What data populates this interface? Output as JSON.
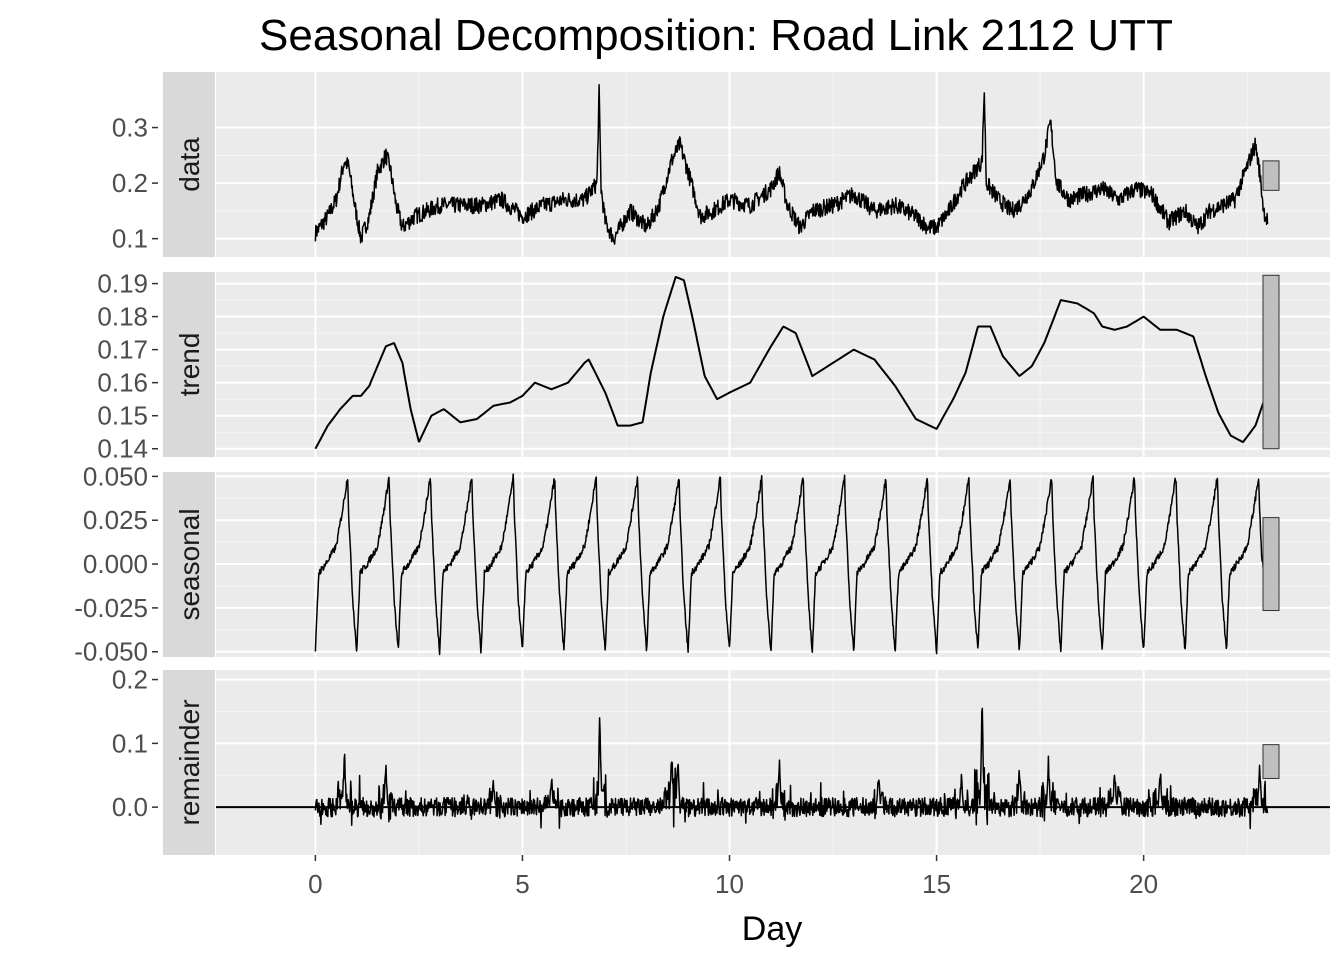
{
  "chart_data": {
    "type": "line",
    "title": "Seasonal Decomposition: Road Link 2112 UTT",
    "xlabel": "Day",
    "xlim": [
      -2.4,
      24.5
    ],
    "x_ticks": [
      0,
      5,
      10,
      15,
      20
    ],
    "x_tick_labels": [
      "0",
      "5",
      "10",
      "15",
      "20"
    ],
    "grid": true,
    "panel_background": "#ebebeb",
    "strip_background": "#d9d9d9",
    "line_color": "#000000",
    "scale_bar_fill": "#bfbfbf",
    "panels": [
      {
        "name": "data",
        "ylim": [
          0.067,
          0.4
        ],
        "y_ticks": [
          0.1,
          0.2,
          0.3
        ],
        "y_tick_labels": [
          "0.1",
          "0.2",
          "0.3"
        ],
        "scale_bar": [
          0.187,
          0.24
        ],
        "x": [
          0,
          0.3,
          0.5,
          0.7,
          0.8,
          0.95,
          1.1,
          1.3,
          1.5,
          1.7,
          1.8,
          1.95,
          2.1,
          2.4,
          2.7,
          3.0,
          3.5,
          4.0,
          4.5,
          5.0,
          5.5,
          6.0,
          6.5,
          6.8,
          6.85,
          6.9,
          7.0,
          7.2,
          7.6,
          8.0,
          8.3,
          8.6,
          8.8,
          9.0,
          9.3,
          9.6,
          10,
          10.5,
          11,
          11.2,
          11.4,
          11.7,
          12,
          12.5,
          13,
          13.5,
          14,
          14.5,
          14.8,
          15.0,
          15.3,
          15.6,
          15.9,
          16.1,
          16.15,
          16.2,
          16.5,
          16.8,
          17.0,
          17.3,
          17.6,
          17.75,
          17.9,
          18.2,
          18.6,
          19.0,
          19.4,
          19.8,
          20.2,
          20.6,
          21.0,
          21.3,
          21.6,
          21.9,
          22.2,
          22.5,
          22.7,
          22.8,
          22.9,
          23.0
        ],
        "values": [
          0.11,
          0.14,
          0.17,
          0.24,
          0.23,
          0.16,
          0.1,
          0.14,
          0.22,
          0.25,
          0.23,
          0.16,
          0.12,
          0.14,
          0.15,
          0.16,
          0.16,
          0.16,
          0.17,
          0.14,
          0.16,
          0.17,
          0.17,
          0.2,
          0.37,
          0.19,
          0.13,
          0.1,
          0.15,
          0.12,
          0.16,
          0.24,
          0.27,
          0.22,
          0.14,
          0.15,
          0.17,
          0.16,
          0.19,
          0.22,
          0.16,
          0.12,
          0.15,
          0.16,
          0.18,
          0.15,
          0.16,
          0.14,
          0.12,
          0.12,
          0.15,
          0.19,
          0.22,
          0.24,
          0.37,
          0.2,
          0.17,
          0.15,
          0.16,
          0.19,
          0.25,
          0.31,
          0.2,
          0.17,
          0.18,
          0.19,
          0.17,
          0.19,
          0.18,
          0.13,
          0.15,
          0.12,
          0.15,
          0.16,
          0.17,
          0.23,
          0.27,
          0.22,
          0.15,
          0.13
        ],
        "noise": 0.015
      },
      {
        "name": "trend",
        "ylim": [
          0.1375,
          0.1935
        ],
        "y_ticks": [
          0.14,
          0.15,
          0.16,
          0.17,
          0.18,
          0.19
        ],
        "y_tick_labels": [
          "0.14",
          "0.15",
          "0.16",
          "0.17",
          "0.18",
          "0.19"
        ],
        "scale_bar": [
          0.14,
          0.1925
        ],
        "x": [
          0,
          0.3,
          0.6,
          0.9,
          1.1,
          1.3,
          1.5,
          1.7,
          1.9,
          2.1,
          2.3,
          2.5,
          2.8,
          3.1,
          3.5,
          3.9,
          4.3,
          4.7,
          5.0,
          5.3,
          5.7,
          6.1,
          6.5,
          6.6,
          6.8,
          7.0,
          7.3,
          7.6,
          7.9,
          8.1,
          8.4,
          8.7,
          8.9,
          9.1,
          9.4,
          9.7,
          10.0,
          10.5,
          11.0,
          11.3,
          11.6,
          12.0,
          12.5,
          13.0,
          13.5,
          14.0,
          14.5,
          15.0,
          15.4,
          15.7,
          16.0,
          16.3,
          16.6,
          17.0,
          17.3,
          17.6,
          18.0,
          18.4,
          18.8,
          19.0,
          19.3,
          19.6,
          20.0,
          20.4,
          20.8,
          21.2,
          21.5,
          21.8,
          22.1,
          22.4,
          22.7,
          23.0
        ],
        "values": [
          0.14,
          0.147,
          0.152,
          0.156,
          0.156,
          0.159,
          0.165,
          0.171,
          0.172,
          0.166,
          0.152,
          0.142,
          0.15,
          0.152,
          0.148,
          0.149,
          0.153,
          0.154,
          0.156,
          0.16,
          0.158,
          0.16,
          0.166,
          0.167,
          0.162,
          0.157,
          0.147,
          0.147,
          0.148,
          0.163,
          0.18,
          0.192,
          0.191,
          0.18,
          0.162,
          0.155,
          0.157,
          0.16,
          0.171,
          0.177,
          0.175,
          0.162,
          0.166,
          0.17,
          0.167,
          0.159,
          0.149,
          0.146,
          0.155,
          0.163,
          0.177,
          0.177,
          0.168,
          0.162,
          0.165,
          0.172,
          0.185,
          0.184,
          0.181,
          0.177,
          0.176,
          0.177,
          0.18,
          0.176,
          0.176,
          0.174,
          0.162,
          0.151,
          0.144,
          0.142,
          0.147,
          0.158
        ],
        "noise": 0
      },
      {
        "name": "seasonal",
        "ylim": [
          -0.053,
          0.0525
        ],
        "y_ticks": [
          -0.05,
          -0.025,
          0,
          0.025,
          0.05
        ],
        "y_tick_labels": [
          "-0.050",
          "-0.025",
          "0.000",
          "0.025",
          "0.050"
        ],
        "scale_bar": [
          -0.0265,
          0.0265
        ],
        "period": 1,
        "cycle_x": [
          0,
          0.08,
          0.25,
          0.5,
          0.65,
          0.78,
          0.8,
          0.9,
          1.0
        ],
        "cycle_values": [
          -0.05,
          -0.005,
          0.0,
          0.01,
          0.03,
          0.05,
          0.03,
          -0.02,
          -0.05
        ],
        "end_x": 23,
        "end_value": -0.027,
        "noise": 0.004
      },
      {
        "name": "remainder",
        "ylim": [
          -0.075,
          0.215
        ],
        "y_ticks": [
          0,
          0.1,
          0.2
        ],
        "y_tick_labels": [
          "0.0",
          "0.1",
          "0.2"
        ],
        "scale_bar": [
          0.045,
          0.098
        ],
        "zero_line": true,
        "spikes_x": [
          0.7,
          1.7,
          4.3,
          5.7,
          6.87,
          8.6,
          8.75,
          11.2,
          13.6,
          15.6,
          16.1,
          17.0,
          17.7,
          19.3,
          20.4,
          22.8
        ],
        "spikes_values": [
          0.1,
          0.08,
          0.05,
          0.06,
          0.165,
          0.1,
          0.09,
          0.09,
          0.06,
          0.06,
          0.2,
          0.08,
          0.095,
          0.07,
          0.07,
          0.08
        ],
        "noise": 0.015
      }
    ]
  }
}
